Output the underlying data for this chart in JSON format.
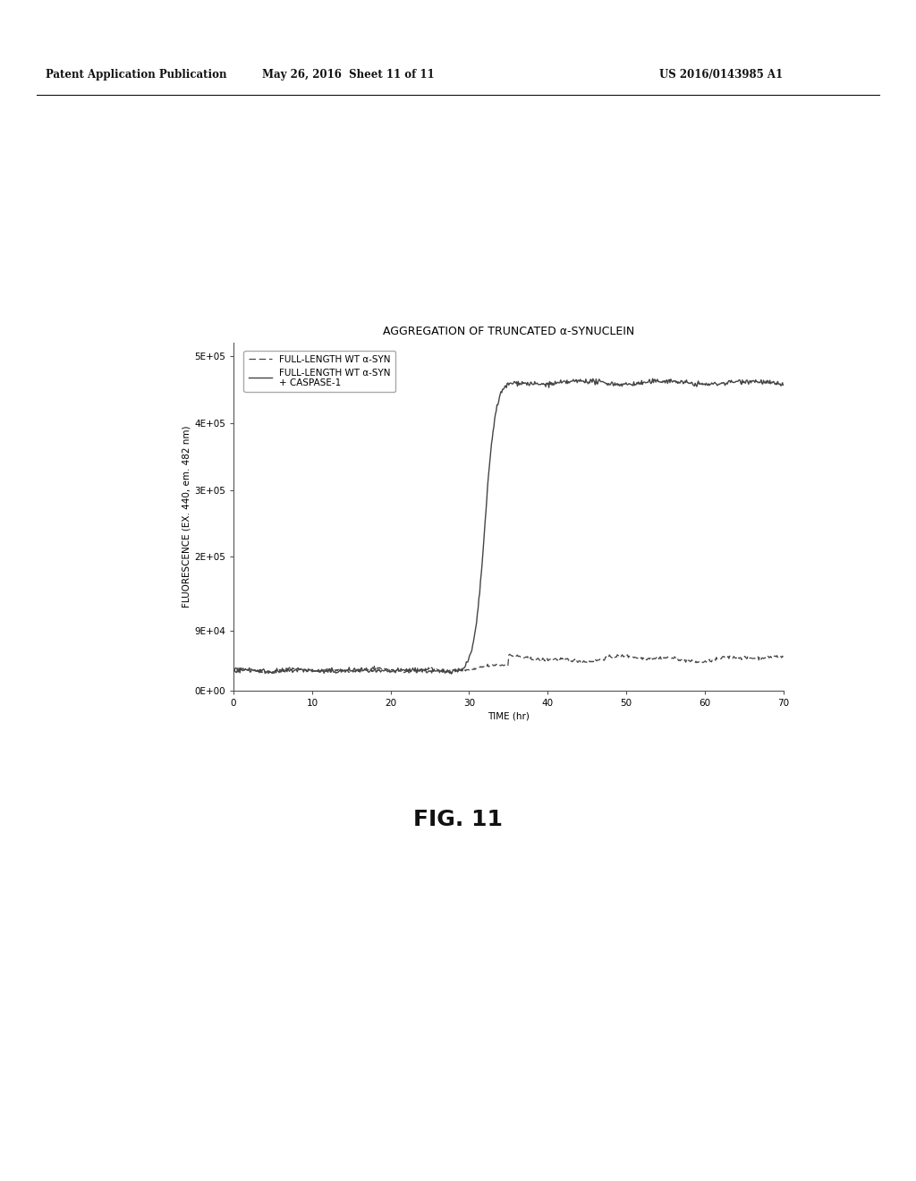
{
  "title": "AGGREGATION OF TRUNCATED α-SYNUCLEIN",
  "xlabel": "TIME (hr)",
  "ylabel": "FLUORESCENCE (EX. 440, em. 482 nm)",
  "xlim": [
    0,
    70
  ],
  "ylim": [
    0,
    520000
  ],
  "xticks": [
    0,
    10,
    20,
    30,
    40,
    50,
    60,
    70
  ],
  "yticks": [
    0,
    90000,
    200000,
    300000,
    400000,
    500000
  ],
  "ytick_labels": [
    "0E+00",
    "9E+04",
    "2E+05",
    "3E+05",
    "4E+05",
    "5E+05"
  ],
  "legend_line1": "FULL-LENGTH WT α-SYN",
  "legend_line2": "FULL-LENGTH WT α-SYN\n+ CASPASE-1",
  "fig_label": "FIG. 11",
  "patent_left": "Patent Application Publication",
  "patent_mid": "May 26, 2016  Sheet 11 of 11",
  "patent_right": "US 2016/0143985 A1",
  "background_color": "#ffffff",
  "line_color": "#444444",
  "title_fontsize": 9,
  "axis_fontsize": 7.5,
  "tick_fontsize": 7.5,
  "legend_fontsize": 7.5,
  "header_fontsize": 8.5,
  "figlabel_fontsize": 18
}
